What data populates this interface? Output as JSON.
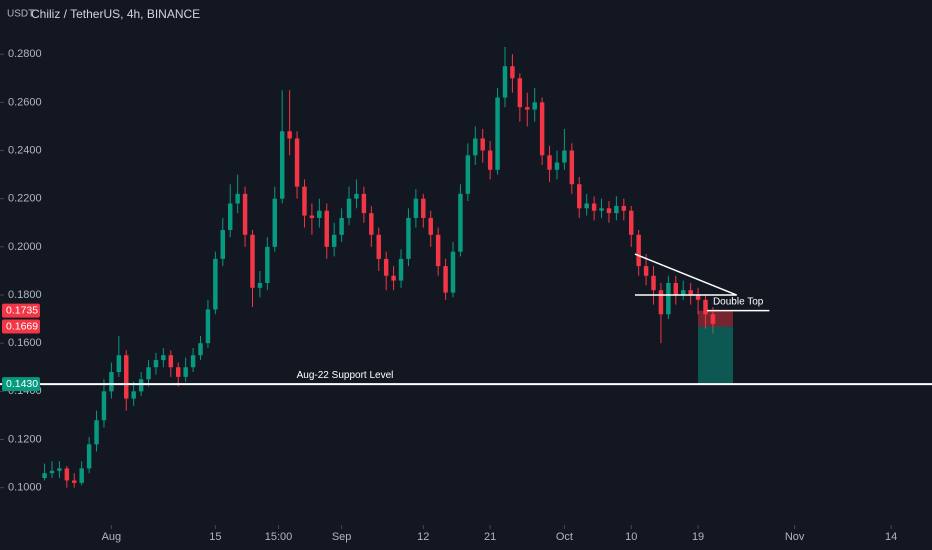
{
  "chart_data": {
    "type": "candlestick",
    "title": "Chiliz / TetherUS, 4h, BINANCE",
    "currency": "USDT",
    "up_color": "#089981",
    "down_color": "#f23645",
    "grid": false,
    "xlim": [
      -15,
      110.5
    ],
    "xticks": [
      {
        "value": 0,
        "label": "Aug"
      },
      {
        "value": 14,
        "label": "15"
      },
      {
        "value": 22.5,
        "label": "15:00"
      },
      {
        "value": 31,
        "label": "Sep"
      },
      {
        "value": 42,
        "label": "12"
      },
      {
        "value": 51,
        "label": "21"
      },
      {
        "value": 61,
        "label": "Oct"
      },
      {
        "value": 70,
        "label": "10"
      },
      {
        "value": 79,
        "label": "19"
      },
      {
        "value": 92,
        "label": "Nov"
      },
      {
        "value": 105,
        "label": "14"
      }
    ],
    "ylim": [
      0.0845,
      0.3025
    ],
    "yticks": [
      {
        "value": 0.1,
        "label": "0.1000"
      },
      {
        "value": 0.12,
        "label": "0.1200"
      },
      {
        "value": 0.14,
        "label": "0.1400"
      },
      {
        "value": 0.16,
        "label": "0.1600"
      },
      {
        "value": 0.18,
        "label": "0.1800"
      },
      {
        "value": 0.2,
        "label": "0.2000"
      },
      {
        "value": 0.22,
        "label": "0.2200"
      },
      {
        "value": 0.24,
        "label": "0.2400"
      },
      {
        "value": 0.26,
        "label": "0.2600"
      },
      {
        "value": 0.28,
        "label": "0.2800"
      }
    ],
    "candles": {
      "x": [
        -9,
        -8,
        -7,
        -6,
        -5,
        -4,
        -3,
        -2,
        -1,
        0,
        1,
        2,
        3,
        4,
        5,
        6,
        7,
        8,
        9,
        10,
        11,
        12,
        13,
        14,
        15,
        16,
        17,
        18,
        19,
        20,
        21,
        22,
        23,
        24,
        25,
        26,
        27,
        28,
        29,
        30,
        31,
        32,
        33,
        34,
        35,
        36,
        37,
        38,
        39,
        40,
        41,
        42,
        43,
        44,
        45,
        46,
        47,
        48,
        49,
        50,
        51,
        52,
        53,
        54,
        55,
        56,
        57,
        58,
        59,
        60,
        61,
        62,
        63,
        64,
        65,
        66,
        67,
        68,
        69,
        70,
        71,
        72,
        73,
        74,
        75,
        76,
        77,
        78,
        79,
        80,
        81
      ],
      "open": [
        0.104,
        0.106,
        0.107,
        0.108,
        0.103,
        0.102,
        0.108,
        0.118,
        0.128,
        0.14,
        0.148,
        0.155,
        0.137,
        0.14,
        0.145,
        0.15,
        0.153,
        0.155,
        0.15,
        0.146,
        0.15,
        0.155,
        0.16,
        0.174,
        0.195,
        0.207,
        0.218,
        0.222,
        0.205,
        0.183,
        0.185,
        0.2,
        0.22,
        0.248,
        0.245,
        0.225,
        0.213,
        0.212,
        0.215,
        0.2,
        0.205,
        0.212,
        0.22,
        0.222,
        0.214,
        0.205,
        0.195,
        0.188,
        0.186,
        0.195,
        0.212,
        0.22,
        0.212,
        0.205,
        0.192,
        0.181,
        0.198,
        0.222,
        0.238,
        0.245,
        0.24,
        0.232,
        0.262,
        0.275,
        0.27,
        0.258,
        0.257,
        0.26,
        0.238,
        0.232,
        0.235,
        0.24,
        0.226,
        0.216,
        0.218,
        0.215,
        0.216,
        0.214,
        0.217,
        0.215,
        0.205,
        0.192,
        0.188,
        0.182,
        0.172,
        0.185,
        0.18,
        0.182,
        0.18,
        0.178,
        0.172
      ],
      "high": [
        0.11,
        0.111,
        0.111,
        0.109,
        0.106,
        0.111,
        0.121,
        0.132,
        0.145,
        0.152,
        0.163,
        0.157,
        0.144,
        0.148,
        0.153,
        0.156,
        0.158,
        0.157,
        0.152,
        0.154,
        0.158,
        0.163,
        0.178,
        0.198,
        0.212,
        0.226,
        0.23,
        0.225,
        0.207,
        0.19,
        0.204,
        0.225,
        0.265,
        0.265,
        0.248,
        0.228,
        0.218,
        0.22,
        0.218,
        0.21,
        0.216,
        0.225,
        0.228,
        0.225,
        0.217,
        0.208,
        0.198,
        0.192,
        0.199,
        0.216,
        0.224,
        0.222,
        0.215,
        0.208,
        0.195,
        0.202,
        0.226,
        0.243,
        0.25,
        0.249,
        0.244,
        0.266,
        0.283,
        0.28,
        0.272,
        0.264,
        0.266,
        0.262,
        0.242,
        0.24,
        0.249,
        0.243,
        0.229,
        0.222,
        0.221,
        0.22,
        0.219,
        0.221,
        0.22,
        0.217,
        0.207,
        0.197,
        0.192,
        0.185,
        0.188,
        0.188,
        0.186,
        0.185,
        0.183,
        0.18,
        0.175
      ],
      "low": [
        0.103,
        0.104,
        0.104,
        0.1,
        0.1,
        0.101,
        0.106,
        0.115,
        0.125,
        0.137,
        0.146,
        0.132,
        0.134,
        0.138,
        0.142,
        0.147,
        0.15,
        0.146,
        0.142,
        0.144,
        0.148,
        0.153,
        0.158,
        0.172,
        0.192,
        0.204,
        0.214,
        0.2,
        0.175,
        0.179,
        0.182,
        0.198,
        0.218,
        0.238,
        0.22,
        0.208,
        0.205,
        0.208,
        0.195,
        0.196,
        0.202,
        0.209,
        0.216,
        0.21,
        0.2,
        0.19,
        0.182,
        0.182,
        0.183,
        0.192,
        0.208,
        0.208,
        0.2,
        0.188,
        0.178,
        0.179,
        0.196,
        0.219,
        0.234,
        0.235,
        0.228,
        0.23,
        0.258,
        0.264,
        0.252,
        0.25,
        0.252,
        0.234,
        0.227,
        0.228,
        0.232,
        0.222,
        0.212,
        0.213,
        0.211,
        0.212,
        0.21,
        0.211,
        0.211,
        0.2,
        0.188,
        0.184,
        0.176,
        0.16,
        0.17,
        0.176,
        0.178,
        0.176,
        0.172,
        0.166,
        0.164
      ],
      "close": [
        0.106,
        0.107,
        0.108,
        0.103,
        0.102,
        0.108,
        0.118,
        0.128,
        0.14,
        0.148,
        0.155,
        0.137,
        0.14,
        0.145,
        0.15,
        0.153,
        0.155,
        0.15,
        0.146,
        0.15,
        0.155,
        0.16,
        0.174,
        0.195,
        0.207,
        0.218,
        0.222,
        0.205,
        0.183,
        0.185,
        0.2,
        0.22,
        0.248,
        0.245,
        0.225,
        0.213,
        0.212,
        0.215,
        0.2,
        0.205,
        0.212,
        0.22,
        0.222,
        0.214,
        0.205,
        0.195,
        0.188,
        0.186,
        0.195,
        0.212,
        0.22,
        0.212,
        0.205,
        0.192,
        0.181,
        0.198,
        0.222,
        0.238,
        0.245,
        0.24,
        0.232,
        0.262,
        0.275,
        0.27,
        0.258,
        0.257,
        0.26,
        0.238,
        0.232,
        0.235,
        0.24,
        0.226,
        0.216,
        0.218,
        0.215,
        0.216,
        0.214,
        0.217,
        0.215,
        0.205,
        0.192,
        0.188,
        0.182,
        0.172,
        0.185,
        0.18,
        0.182,
        0.18,
        0.178,
        0.172,
        0.168
      ]
    },
    "support": {
      "value": 0.143,
      "label": "Aug-22 Support Level"
    },
    "triangle": {
      "x": [
        70.5,
        84.2
      ],
      "upper": [
        0.197,
        0.18
      ],
      "lower": [
        0.18,
        0.18
      ]
    },
    "double_top": {
      "value": 0.1735,
      "x": [
        80.2,
        88.6
      ],
      "label": "Double Top"
    },
    "position": {
      "x": [
        79,
        83.7
      ],
      "stop": 0.1735,
      "entry": 0.1669,
      "target": 0.143
    },
    "price_tags": [
      {
        "value": 0.1735,
        "color": "#f23645"
      },
      {
        "value": 0.1669,
        "color": "#f23645"
      },
      {
        "value": 0.143,
        "label": "0.1430",
        "color": "#089981"
      }
    ]
  }
}
